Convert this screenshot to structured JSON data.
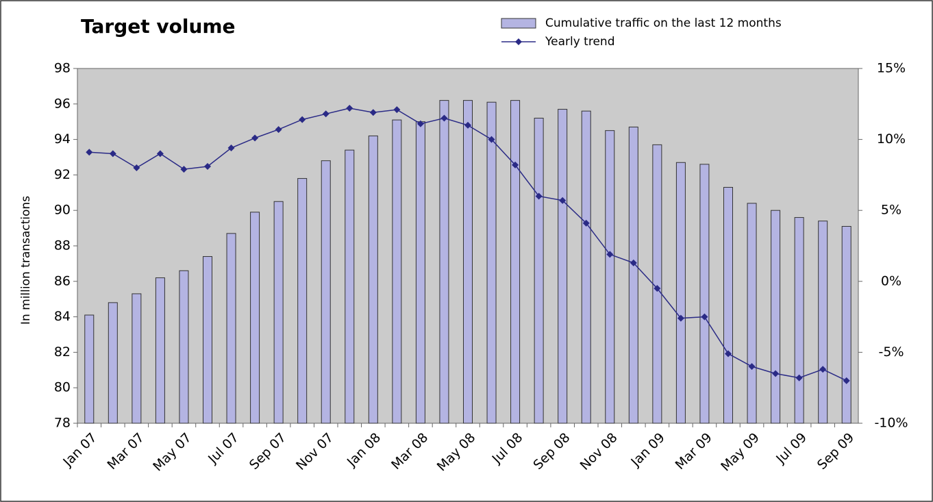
{
  "chart_data": {
    "type": "bar-line",
    "title": "Target volume",
    "y_label": "In million transactions",
    "categories": [
      "Jan 07",
      null,
      "Mar 07",
      null,
      "May 07",
      null,
      "Jul 07",
      null,
      "Sep 07",
      null,
      "Nov 07",
      null,
      "Jan 08",
      null,
      "Mar 08",
      null,
      "May 08",
      null,
      "Jul 08",
      null,
      "Sep 08",
      null,
      "Nov 08",
      null,
      "Jan 09",
      null,
      "Mar 09",
      null,
      "May 09",
      null,
      "Jul 09",
      null,
      "Sep 09"
    ],
    "series": [
      {
        "name": "Cumulative traffic on the last 12 months",
        "type": "bar",
        "color": "#b4b4e2",
        "values": [
          84.1,
          84.8,
          85.3,
          86.2,
          86.6,
          87.4,
          88.7,
          89.9,
          90.5,
          91.8,
          92.8,
          93.4,
          94.2,
          95.1,
          95.0,
          96.2,
          96.2,
          96.1,
          96.2,
          95.2,
          95.7,
          95.6,
          94.5,
          94.7,
          93.7,
          92.7,
          92.6,
          91.3,
          90.4,
          90.0,
          89.6,
          89.4,
          89.1
        ]
      },
      {
        "name": "Yearly trend",
        "type": "line",
        "axis": "y2",
        "color": "#2a2a86",
        "values": [
          9.1,
          9.0,
          8.0,
          9.0,
          7.9,
          8.1,
          9.4,
          10.1,
          10.7,
          11.4,
          11.8,
          12.2,
          11.9,
          12.1,
          11.1,
          11.5,
          11.0,
          10.0,
          8.2,
          6.0,
          5.7,
          4.1,
          1.9,
          1.3,
          -0.5,
          -2.6,
          -2.5,
          -5.1,
          -6.0,
          -6.5,
          -6.8,
          -6.2,
          -7.0
        ]
      }
    ],
    "ylim": [
      78,
      98
    ],
    "yticks": [
      78,
      80,
      82,
      84,
      86,
      88,
      90,
      92,
      94,
      96,
      98
    ],
    "y2lim": [
      -10,
      15
    ],
    "y2ticks": [
      {
        "value": -10,
        "label": "-10%"
      },
      {
        "value": -5,
        "label": "-5%"
      },
      {
        "value": 0,
        "label": "0%"
      },
      {
        "value": 5,
        "label": "5%"
      },
      {
        "value": 10,
        "label": "10%"
      },
      {
        "value": 15,
        "label": "15%"
      }
    ],
    "plot_background": "#cbcbcb"
  }
}
